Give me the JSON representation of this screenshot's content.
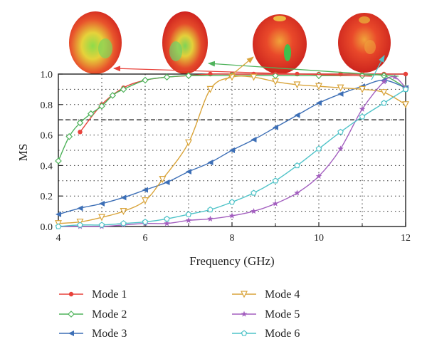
{
  "chart_data": {
    "type": "line",
    "xlabel": "Frequency (GHz)",
    "ylabel": "MS",
    "xlim": [
      4,
      12
    ],
    "ylim": [
      0,
      1.0
    ],
    "xticks": [
      4,
      6,
      8,
      10,
      12
    ],
    "yticks": [
      "0.0",
      "0.2",
      "0.4",
      "0.6",
      "0.8",
      "1.0"
    ],
    "grid": "dotted",
    "threshold": 0.7,
    "legend_position": "bottom",
    "series": [
      {
        "name": "Mode 1",
        "color": "#e8423b",
        "marker": "circle",
        "x": [
          4.5,
          5.0,
          5.5,
          6.0,
          6.5,
          7.0,
          7.5,
          8.0,
          8.5,
          9.0,
          9.5,
          10.0,
          10.5,
          11.0,
          11.5,
          12.0
        ],
        "y": [
          0.62,
          0.8,
          0.91,
          0.96,
          0.98,
          0.99,
          1.0,
          1.0,
          1.0,
          1.0,
          1.0,
          1.0,
          1.0,
          1.0,
          1.0,
          1.0
        ]
      },
      {
        "name": "Mode 2",
        "color": "#4fb35b",
        "marker": "diamond",
        "x": [
          4.0,
          4.25,
          4.5,
          4.75,
          5.0,
          5.25,
          5.5,
          6.0,
          6.5,
          7.0,
          8.0,
          9.0,
          10.0,
          11.0,
          11.5,
          12.0
        ],
        "y": [
          0.43,
          0.59,
          0.68,
          0.74,
          0.79,
          0.86,
          0.9,
          0.96,
          0.98,
          0.99,
          0.99,
          0.99,
          0.99,
          0.99,
          0.99,
          0.91
        ]
      },
      {
        "name": "Mode 3",
        "color": "#3d6fb6",
        "marker": "triangle-left",
        "x": [
          4.0,
          4.5,
          5.0,
          5.5,
          6.0,
          6.5,
          7.0,
          7.5,
          8.0,
          8.5,
          9.0,
          9.5,
          10.0,
          10.5,
          11.0,
          11.5,
          12.0
        ],
        "y": [
          0.08,
          0.12,
          0.15,
          0.19,
          0.24,
          0.29,
          0.36,
          0.42,
          0.5,
          0.57,
          0.65,
          0.73,
          0.81,
          0.87,
          0.92,
          0.96,
          0.91
        ]
      },
      {
        "name": "Mode 4",
        "color": "#d9a43a",
        "marker": "triangle-down",
        "x": [
          4.0,
          4.5,
          5.0,
          5.5,
          6.0,
          6.4,
          7.0,
          7.5,
          8.0,
          8.5,
          9.0,
          9.5,
          10.0,
          10.5,
          11.0,
          11.5,
          12.0
        ],
        "y": [
          0.02,
          0.03,
          0.06,
          0.1,
          0.17,
          0.31,
          0.55,
          0.9,
          0.98,
          0.98,
          0.95,
          0.93,
          0.92,
          0.91,
          0.9,
          0.88,
          0.8
        ]
      },
      {
        "name": "Mode 5",
        "color": "#a35fbf",
        "marker": "star",
        "x": [
          4.0,
          4.5,
          5.0,
          5.5,
          6.0,
          6.5,
          7.0,
          7.5,
          8.0,
          8.5,
          9.0,
          9.5,
          10.0,
          10.5,
          11.0,
          11.5,
          11.75,
          12.0
        ],
        "y": [
          0.0,
          0.0,
          0.0,
          0.01,
          0.02,
          0.02,
          0.04,
          0.05,
          0.07,
          0.1,
          0.15,
          0.22,
          0.33,
          0.51,
          0.77,
          0.95,
          0.98,
          0.91
        ]
      },
      {
        "name": "Mode 6",
        "color": "#4fc3c8",
        "marker": "pentagon",
        "x": [
          4.0,
          4.5,
          5.0,
          5.5,
          6.0,
          6.5,
          7.0,
          7.5,
          8.0,
          8.5,
          9.0,
          9.5,
          10.0,
          10.5,
          11.0,
          11.5,
          12.0
        ],
        "y": [
          0.0,
          0.01,
          0.01,
          0.02,
          0.03,
          0.05,
          0.08,
          0.11,
          0.16,
          0.22,
          0.3,
          0.4,
          0.51,
          0.62,
          0.72,
          0.81,
          0.9
        ]
      }
    ],
    "pattern_images": [
      {
        "mode": "Mode 1",
        "shape": "ellipsoid"
      },
      {
        "mode": "Mode 2",
        "shape": "ellipsoid"
      },
      {
        "mode": "Mode 4",
        "shape": "lobed"
      },
      {
        "mode": "Mode 5",
        "shape": "lobed"
      }
    ]
  }
}
